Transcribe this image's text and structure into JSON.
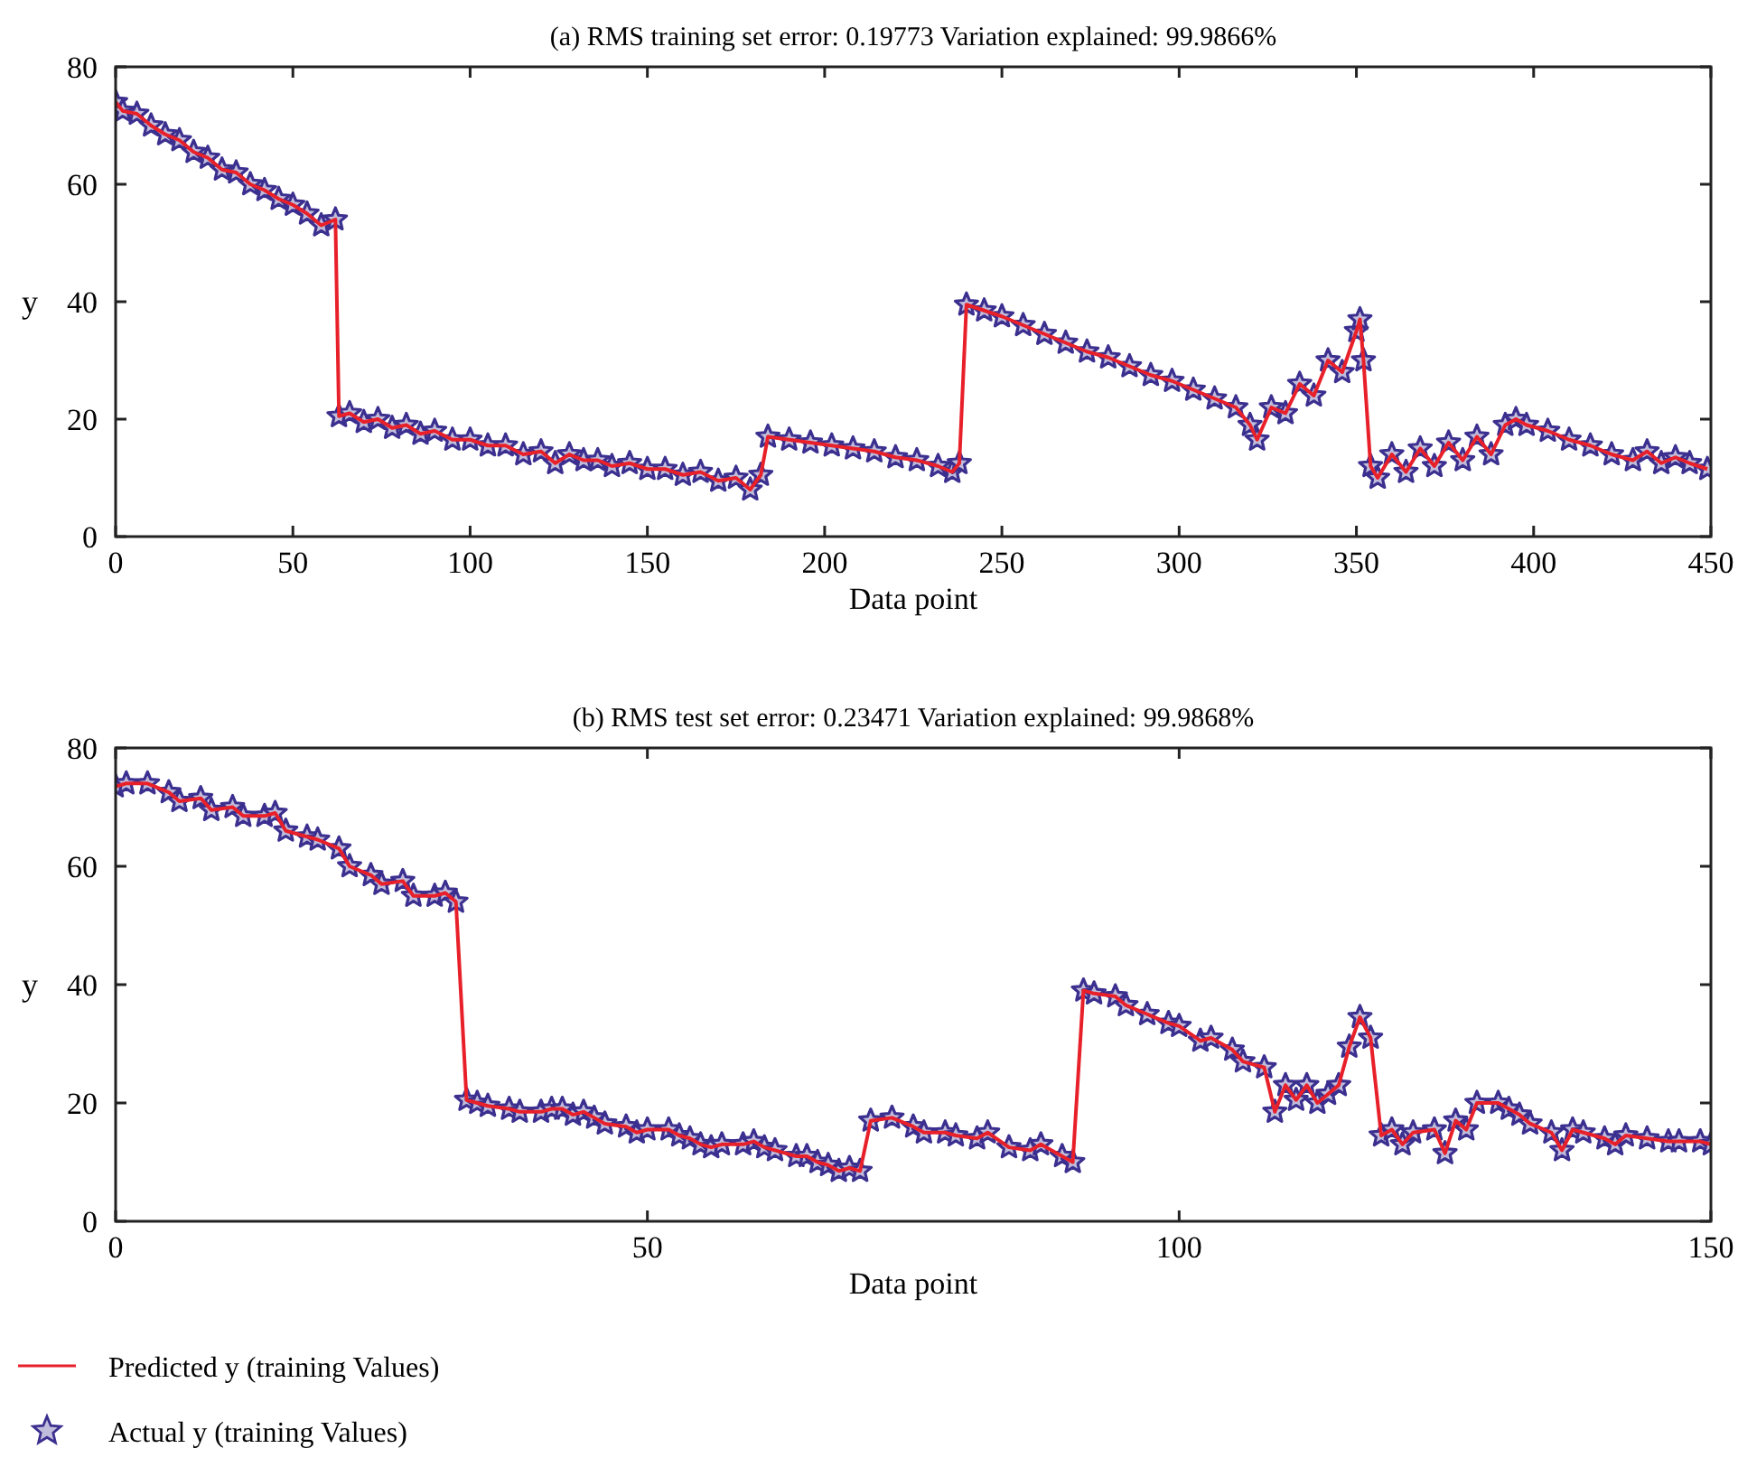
{
  "chart_data": [
    {
      "type": "line",
      "title": "(a) RMS training set error: 0.19773 Variation explained: 99.9866%",
      "xlabel": "Data point",
      "ylabel": "y",
      "xlim": [
        0,
        450
      ],
      "ylim": [
        0,
        80
      ],
      "xticks": [
        0,
        50,
        100,
        150,
        200,
        250,
        300,
        350,
        400,
        450
      ],
      "yticks": [
        0,
        20,
        40,
        60,
        80
      ],
      "legend": false,
      "x": [
        0,
        2,
        6,
        10,
        14,
        18,
        22,
        26,
        30,
        34,
        38,
        42,
        46,
        50,
        54,
        58,
        62,
        63,
        66,
        70,
        74,
        78,
        82,
        86,
        90,
        95,
        100,
        105,
        110,
        115,
        120,
        124,
        128,
        132,
        136,
        140,
        145,
        150,
        155,
        160,
        165,
        170,
        175,
        179,
        182,
        184,
        190,
        196,
        202,
        208,
        214,
        220,
        226,
        232,
        236,
        238,
        240,
        245,
        250,
        256,
        262,
        268,
        274,
        280,
        286,
        292,
        298,
        304,
        310,
        316,
        320,
        322,
        326,
        330,
        334,
        338,
        342,
        346,
        350,
        351,
        352,
        354,
        356,
        360,
        364,
        368,
        372,
        376,
        380,
        384,
        388,
        392,
        395,
        398,
        404,
        410,
        416,
        422,
        428,
        432,
        436,
        440,
        444,
        449
      ],
      "series": [
        {
          "color": "#e8202a",
          "marker": "none",
          "values": [
            74,
            72.5,
            72,
            70,
            68.5,
            67.5,
            65.5,
            64.5,
            62.5,
            62,
            60,
            59,
            57.5,
            56.5,
            55,
            53,
            54,
            20.5,
            21,
            19.5,
            20,
            18.5,
            19,
            17.5,
            18,
            16.5,
            16.5,
            15.5,
            15.5,
            14,
            14.5,
            12.5,
            14,
            13,
            13,
            12,
            12.5,
            11.5,
            11.5,
            10.5,
            11,
            9.5,
            10,
            8,
            10.5,
            17,
            16.5,
            16,
            15.5,
            15,
            14.5,
            13.5,
            13,
            12,
            11,
            12.5,
            39.5,
            38.5,
            37.5,
            36,
            34.5,
            33,
            31.5,
            30.5,
            29,
            27.5,
            26.5,
            25,
            23.5,
            22,
            19,
            16.5,
            22,
            21,
            26,
            24,
            30,
            28,
            35,
            37,
            30,
            12,
            10,
            14,
            11,
            15,
            12,
            16,
            13,
            17,
            14,
            19,
            20,
            19,
            18,
            16.5,
            15.5,
            14,
            13,
            14.5,
            12.5,
            13.5,
            12.5,
            11.5
          ]
        },
        {
          "type": "scatter",
          "marker": "star",
          "color": "#3b2f8f",
          "values": [
            74,
            72.5,
            72,
            70,
            68.5,
            67.5,
            65.5,
            64.5,
            62.5,
            62,
            60,
            59,
            57.5,
            56.5,
            55,
            53,
            54,
            20.5,
            21,
            19.5,
            20,
            18.5,
            19,
            17.5,
            18,
            16.5,
            16.5,
            15.5,
            15.5,
            14,
            14.5,
            12.5,
            14,
            13,
            13,
            12,
            12.5,
            11.5,
            11.5,
            10.5,
            11,
            9.5,
            10,
            8,
            10.5,
            17,
            16.5,
            16,
            15.5,
            15,
            14.5,
            13.5,
            13,
            12,
            11,
            12.5,
            39.5,
            38.5,
            37.5,
            36,
            34.5,
            33,
            31.5,
            30.5,
            29,
            27.5,
            26.5,
            25,
            23.5,
            22,
            19,
            16.5,
            22,
            21,
            26,
            24,
            30,
            28,
            35,
            37,
            30,
            12,
            10,
            14,
            11,
            15,
            12,
            16,
            13,
            17,
            14,
            19,
            20,
            19,
            18,
            16.5,
            15.5,
            14,
            13,
            14.5,
            12.5,
            13.5,
            12.5,
            11.5
          ]
        }
      ]
    },
    {
      "type": "line",
      "title": "(b) RMS test set error: 0.23471 Variation explained: 99.9868%",
      "xlabel": "Data point",
      "ylabel": "y",
      "xlim": [
        0,
        150
      ],
      "ylim": [
        0,
        80
      ],
      "xticks": [
        0,
        50,
        100,
        150
      ],
      "yticks": [
        0,
        20,
        40,
        60,
        80
      ],
      "legend": "bottom",
      "x": [
        0,
        1,
        3,
        5,
        6,
        8,
        9,
        11,
        12,
        14,
        15,
        16,
        18,
        19,
        21,
        22,
        24,
        25,
        27,
        28,
        30,
        31,
        32,
        33,
        34,
        35,
        37,
        38,
        40,
        41,
        42,
        43,
        44,
        45,
        46,
        48,
        49,
        50,
        52,
        53,
        54,
        55,
        56,
        57,
        59,
        60,
        61,
        62,
        64,
        65,
        66,
        67,
        68,
        69,
        70,
        71,
        73,
        75,
        76,
        78,
        79,
        81,
        82,
        84,
        86,
        87,
        89,
        90,
        91,
        92,
        94,
        95,
        97,
        99,
        100,
        102,
        103,
        105,
        106,
        108,
        109,
        110,
        111,
        112,
        113,
        114,
        115,
        116,
        117,
        118,
        119,
        120,
        121,
        122,
        124,
        125,
        126,
        127,
        128,
        130,
        131,
        132,
        133,
        135,
        136,
        137,
        138,
        140,
        141,
        142,
        144,
        146,
        147,
        149,
        150
      ],
      "series": [
        {
          "name": "Predicted y (training Values)",
          "marker": "none",
          "color": "#e8202a",
          "values": [
            73.5,
            74,
            74,
            72.5,
            71,
            71.5,
            69.5,
            70,
            68.5,
            68.5,
            69,
            66,
            65,
            64.5,
            63,
            60,
            58.5,
            57,
            57.5,
            55,
            55,
            55.5,
            54,
            20.5,
            20,
            19.5,
            19,
            18.5,
            18.5,
            19,
            19,
            18,
            18.5,
            17.5,
            16.5,
            16,
            15,
            15.5,
            15.5,
            14.5,
            14,
            13,
            12.5,
            13,
            13,
            13.5,
            12.5,
            12,
            11,
            11,
            10,
            9.5,
            8.5,
            9,
            8.5,
            17,
            17.5,
            16,
            15,
            15,
            14.5,
            14,
            15,
            12.5,
            12,
            13,
            11,
            10,
            39,
            38.5,
            38,
            36.5,
            35,
            33.5,
            33,
            30.5,
            31,
            29,
            27,
            26,
            18.5,
            23,
            20.5,
            23,
            20,
            21.5,
            23,
            29.5,
            34.5,
            31,
            14.5,
            15.5,
            13,
            15,
            15.5,
            11.5,
            17,
            15.5,
            20,
            20,
            19,
            18,
            16.5,
            15,
            12,
            15.5,
            15,
            14,
            13,
            14.5,
            14,
            13.5,
            13.5,
            13.5,
            13
          ]
        },
        {
          "type": "scatter",
          "marker": "star",
          "name": "Actual y (training Values)",
          "color": "#3b2f8f",
          "values": [
            73.5,
            74,
            74,
            72.5,
            71,
            71.5,
            69.5,
            70,
            68.5,
            68.5,
            69,
            66,
            65,
            64.5,
            63,
            60,
            58.5,
            57,
            57.5,
            55,
            55,
            55.5,
            54,
            20.5,
            20,
            19.5,
            19,
            18.5,
            18.5,
            19,
            19,
            18,
            18.5,
            17.5,
            16.5,
            16,
            15,
            15.5,
            15.5,
            14.5,
            14,
            13,
            12.5,
            13,
            13,
            13.5,
            12.5,
            12,
            11,
            11,
            10,
            9.5,
            8.5,
            9,
            8.5,
            17,
            17.5,
            16,
            15,
            15,
            14.5,
            14,
            15,
            12.5,
            12,
            13,
            11,
            10,
            39,
            38.5,
            38,
            36.5,
            35,
            33.5,
            33,
            30.5,
            31,
            29,
            27,
            26,
            18.5,
            23,
            20.5,
            23,
            20,
            21.5,
            23,
            29.5,
            34.5,
            31,
            14.5,
            15.5,
            13,
            15,
            15.5,
            11.5,
            17,
            15.5,
            20,
            20,
            19,
            18,
            16.5,
            15,
            12,
            15.5,
            15,
            14,
            13,
            14.5,
            14,
            13.5,
            13.5,
            13.5,
            13
          ]
        }
      ]
    }
  ]
}
